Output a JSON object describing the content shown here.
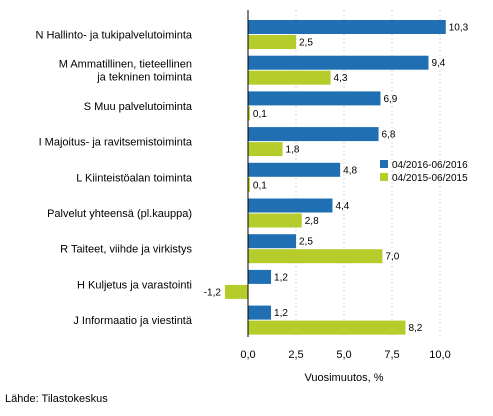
{
  "chart_data": {
    "type": "bar",
    "orientation": "horizontal",
    "categories": [
      [
        "N Hallinto- ja tukipalvelutoiminta"
      ],
      [
        "M Ammatillinen, tieteellinen",
        "ja tekninen toiminta"
      ],
      [
        "S Muu palvelutoiminta"
      ],
      [
        "I Majoitus- ja ravitsemistoiminta"
      ],
      [
        "L Kiinteistöalan toiminta"
      ],
      [
        "Palvelut yhteensä (pl.kauppa)"
      ],
      [
        "R Taiteet, viihde ja virkistys"
      ],
      [
        "H Kuljetus ja varastointi"
      ],
      [
        "J Informaatio ja viestintä"
      ]
    ],
    "series": [
      {
        "name": "04/2016-06/2016",
        "color": "#1f6fb2",
        "values": [
          10.3,
          9.4,
          6.9,
          6.8,
          4.8,
          4.4,
          2.5,
          1.2,
          1.2
        ],
        "labels": [
          "10,3",
          "9,4",
          "6,9",
          "6,8",
          "4,8",
          "4,4",
          "2,5",
          "1,2",
          "1,2"
        ]
      },
      {
        "name": "04/2015-06/2015",
        "color": "#b5cc2b",
        "values": [
          2.5,
          4.3,
          0.1,
          1.8,
          0.1,
          2.8,
          7.0,
          -1.2,
          8.2
        ],
        "labels": [
          "2,5",
          "4,3",
          "0,1",
          "1,8",
          "0,1",
          "2,8",
          "7,0",
          "-1,2",
          "8,2"
        ]
      }
    ],
    "xlim": [
      -2.5,
      12.5
    ],
    "xticks": [
      0,
      2.5,
      5,
      7.5,
      10
    ],
    "xtick_labels": [
      "0,0",
      "2,5",
      "5,0",
      "7,5",
      "10,0"
    ],
    "xlabel": "Vuosimuutos, %",
    "grid": "vertical",
    "legend_position": "right"
  },
  "source": "Lähde: Tilastokeskus"
}
